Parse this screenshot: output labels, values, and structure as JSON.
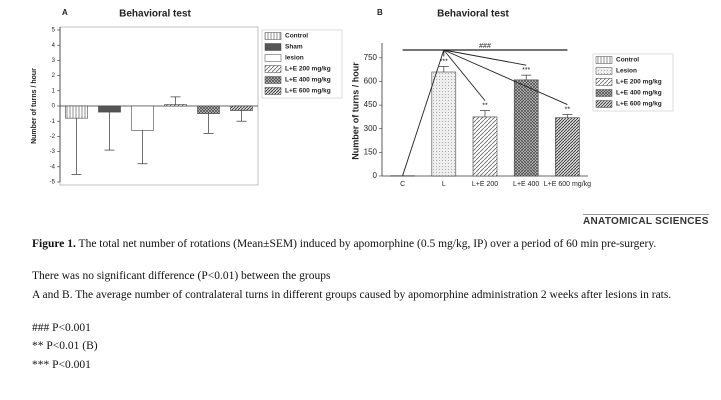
{
  "chart_data": [
    {
      "type": "bar",
      "panel": "A",
      "title": "Behavioral test",
      "y_label": "Number of turns / hour",
      "categories": [
        null,
        null,
        null,
        null,
        null,
        null
      ],
      "values": [
        -0.8,
        -0.4,
        -1.6,
        0.1,
        -0.5,
        -0.3
      ],
      "errors": [
        3.7,
        2.5,
        2.2,
        0.5,
        1.3,
        0.7
      ],
      "legend_labels": [
        "Control",
        "Sham",
        "lesion",
        "L+E 200 mg/kg",
        "L+E 400 mg/kg",
        "L+E 600 mg/kg"
      ],
      "patterns": [
        "vlines",
        "dark",
        "white",
        "diag",
        "cross",
        "diagdense"
      ],
      "ylim": [
        -5,
        5
      ],
      "yticks": [
        -5,
        -4,
        -3,
        -2,
        -1,
        0,
        1,
        2,
        3,
        4,
        5
      ]
    },
    {
      "type": "bar",
      "panel": "B",
      "title": "Behavioral test",
      "y_label": "Number of turns / hour",
      "categories": [
        "C",
        "L",
        "L+E 200",
        "L+E 400",
        "L+E 600 mg/kg"
      ],
      "values": [
        2,
        660,
        375,
        610,
        370
      ],
      "errors": [
        0,
        35,
        40,
        30,
        20
      ],
      "value_labels": [
        null,
        "***",
        "**",
        "***",
        "**"
      ],
      "annotation": "###",
      "legend_labels": [
        "Control",
        "Lesion",
        "L+E 200 mg/kg",
        "L+E 400 mg/kg",
        "L+E 600 mg/kg"
      ],
      "patterns": [
        "vlines",
        "dots",
        "diag",
        "cross",
        "diagdense"
      ],
      "ylim": [
        0,
        825
      ],
      "yticks": [
        0,
        150,
        300,
        450,
        600,
        750
      ]
    }
  ],
  "journal": "ANATOMICAL SCIENCES",
  "caption": {
    "label": "Figure 1.",
    "text": "The total net number of rotations (Mean±SEM) induced by apomorphine (0.5 mg/kg, IP) over a period of 60 min pre-surgery."
  },
  "notes": [
    "There was no significant difference (P<0.01) between the groups",
    "A and B. The average number of contralateral turns in different groups caused by apomorphine administration 2 weeks after lesions in rats.",
    "### P<0.001",
    "** P<0.01 (B)",
    "*** P<0.001"
  ]
}
